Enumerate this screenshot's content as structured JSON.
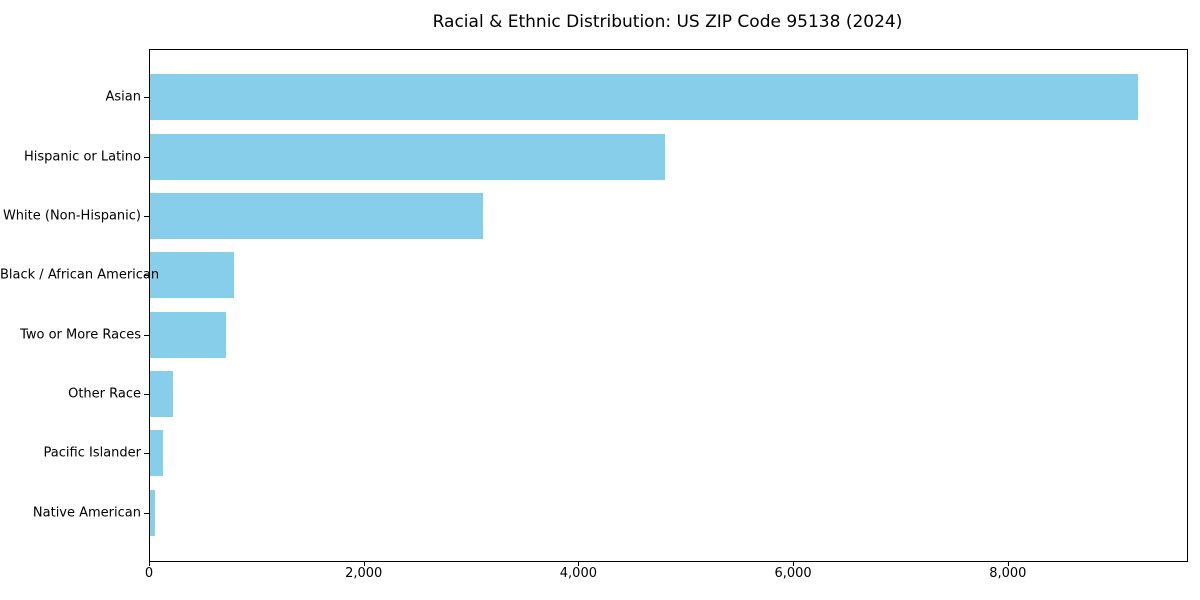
{
  "chart_data": {
    "type": "bar",
    "orientation": "horizontal",
    "title": "Racial & Ethnic Distribution: US ZIP Code 95138 (2024)",
    "categories": [
      "Asian",
      "Hispanic or Latino",
      "White (Non-Hispanic)",
      "Black / African American",
      "Two or More Races",
      "Other Race",
      "Pacific Islander",
      "Native American"
    ],
    "values": [
      9200,
      4800,
      3100,
      780,
      710,
      210,
      120,
      45
    ],
    "xlabel": "",
    "ylabel": "",
    "xlim": [
      0,
      9660
    ],
    "x_ticks": [
      0,
      2000,
      4000,
      6000,
      8000
    ],
    "x_tick_labels": [
      "0",
      "2,000",
      "4,000",
      "6,000",
      "8,000"
    ],
    "bar_color": "#87CEEB",
    "background_color": "#ffffff",
    "axis_color": "#000000",
    "grid": false,
    "legend": null
  }
}
